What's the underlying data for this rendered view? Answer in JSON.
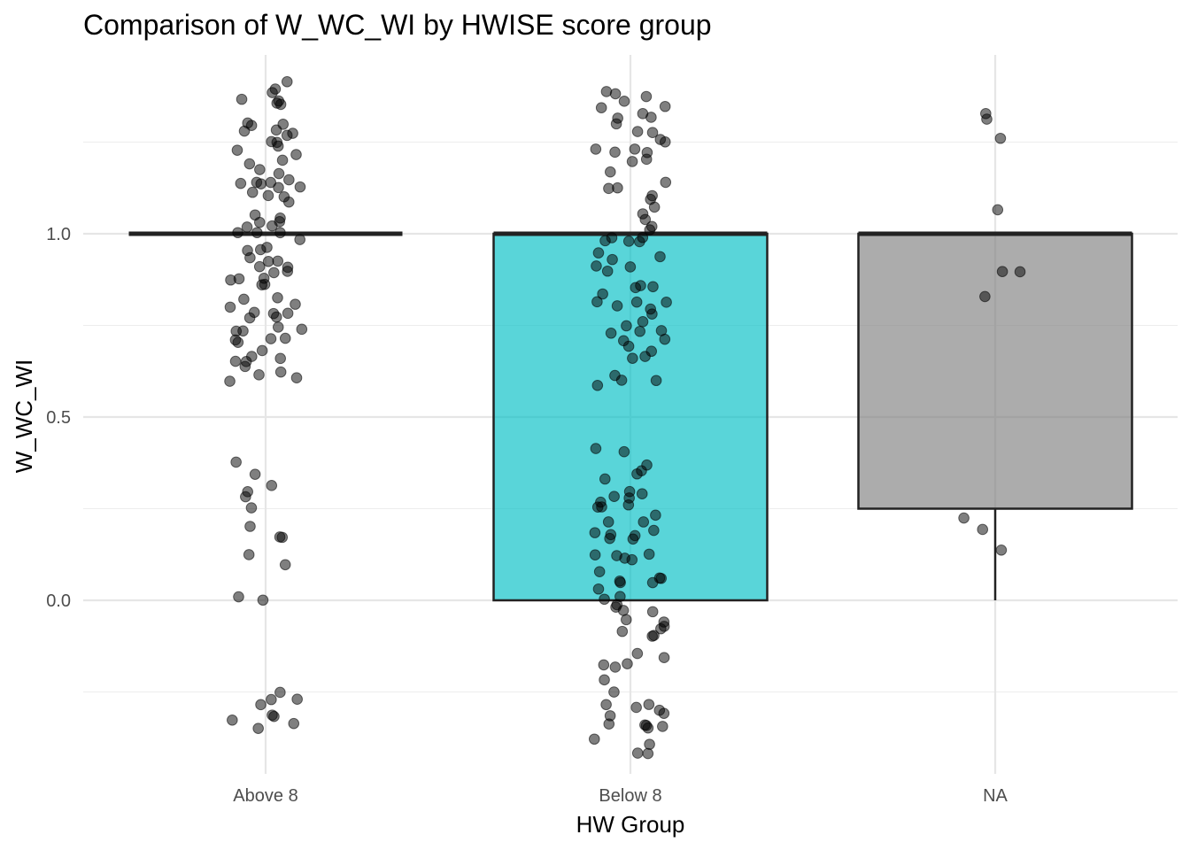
{
  "chart_data": {
    "type": "boxplot",
    "title": "Comparison of W_WC_WI by HWISE score group",
    "xlabel": "HW Group",
    "ylabel": "W_WC_WI",
    "ylim": [
      -0.47,
      1.5
    ],
    "y_ticks": [
      0.0,
      0.5,
      1.0
    ],
    "y_tick_labels": [
      "0.0",
      "0.5",
      "1.0"
    ],
    "categories": [
      "Above 8",
      "Below 8",
      "NA"
    ],
    "colors": {
      "Above 8": "#F8766D",
      "Below 8": "#00BFC4",
      "NA": "#7F7F7F",
      "box_outline": "#222222",
      "points": "#000000"
    },
    "boxes": [
      {
        "group": "Above 8",
        "whisker_low": 1.0,
        "q1": 1.0,
        "median": 1.0,
        "q3": 1.0,
        "whisker_high": 1.0
      },
      {
        "group": "Below 8",
        "whisker_low": 0.0,
        "q1": 0.0,
        "median": 1.0,
        "q3": 1.0,
        "whisker_high": 1.0
      },
      {
        "group": "NA",
        "whisker_low": 0.0,
        "q1": 0.25,
        "median": 1.0,
        "q3": 1.0,
        "whisker_high": 1.0
      }
    ],
    "points": [
      {
        "group": "Above 8",
        "values": [
          1.37,
          1.36,
          1.35,
          1.34,
          1.33,
          1.31,
          1.29,
          1.27,
          1.26,
          1.25,
          1.23,
          1.21,
          1.2,
          1.19,
          1.18,
          1.17,
          1.15,
          1.14,
          1.13,
          1.12,
          1.11,
          1.1,
          1.08,
          1.07,
          1.05,
          1.04,
          1.02,
          1.01,
          1.0,
          0.99,
          0.98,
          0.96,
          0.95,
          0.93,
          0.91,
          0.9,
          0.88,
          0.87,
          0.86,
          0.84,
          0.83,
          0.82,
          0.8,
          0.79,
          0.78,
          0.77,
          0.75,
          0.74,
          0.73,
          0.72,
          0.7,
          0.68,
          0.67,
          0.66,
          0.64,
          0.63,
          0.62,
          0.61,
          0.6,
          1.38,
          1.36,
          1.33,
          1.3,
          1.27,
          1.24,
          1.22,
          1.19,
          1.16,
          1.13,
          1.1,
          1.06,
          1.03,
          1.0,
          0.97,
          0.94,
          0.91,
          0.88,
          0.85,
          0.82,
          0.79,
          0.76,
          0.73,
          0.7,
          0.67,
          0.64,
          0.62,
          0.35,
          0.31,
          0.3,
          0.28,
          0.28,
          0.23,
          0.2,
          0.17,
          0.16,
          0.15,
          0.13,
          0.01,
          0.01,
          -0.26,
          -0.26,
          -0.28,
          -0.3,
          -0.3,
          -0.31,
          -0.32,
          -0.32,
          -0.38
        ]
      },
      {
        "group": "Below 8",
        "values": [
          1.38,
          1.37,
          1.36,
          1.35,
          1.34,
          1.32,
          1.3,
          1.28,
          1.27,
          1.26,
          1.24,
          1.22,
          1.2,
          1.19,
          1.17,
          1.15,
          1.14,
          1.12,
          1.1,
          1.08,
          1.06,
          1.05,
          1.03,
          1.01,
          1.0,
          0.98,
          0.96,
          0.95,
          0.93,
          0.91,
          0.9,
          0.88,
          0.86,
          0.85,
          0.83,
          0.81,
          0.8,
          0.78,
          0.76,
          0.75,
          0.73,
          0.71,
          0.7,
          0.68,
          0.66,
          0.65,
          0.63,
          0.61,
          0.6,
          1.35,
          1.31,
          1.27,
          1.23,
          1.18,
          1.13,
          1.08,
          1.03,
          0.99,
          0.94,
          0.9,
          0.86,
          0.82,
          0.78,
          0.74,
          0.7,
          0.66,
          0.62,
          0.4,
          0.39,
          0.38,
          0.37,
          0.36,
          0.34,
          0.32,
          0.3,
          0.29,
          0.27,
          0.26,
          0.25,
          0.24,
          0.22,
          0.21,
          0.2,
          0.18,
          0.17,
          0.16,
          0.14,
          0.13,
          0.12,
          0.11,
          0.09,
          0.08,
          0.07,
          0.05,
          0.04,
          0.02,
          0.01,
          0.0,
          0.3,
          0.25,
          0.2,
          0.15,
          0.1,
          0.05,
          0.0,
          -0.01,
          -0.03,
          -0.05,
          -0.07,
          -0.08,
          -0.1,
          -0.11,
          -0.13,
          -0.16,
          -0.18,
          -0.2,
          -0.22,
          -0.24,
          -0.25,
          -0.27,
          -0.28,
          -0.3,
          -0.31,
          -0.33,
          -0.34,
          -0.36,
          -0.37,
          -0.38,
          -0.39,
          -0.4,
          -0.02,
          -0.06,
          -0.12,
          -0.19,
          -0.26,
          -0.32,
          -0.37
        ]
      },
      {
        "group": "NA",
        "values": [
          1.34,
          1.33,
          1.24,
          1.1,
          0.93,
          0.93,
          0.84,
          0.25,
          0.16,
          0.11
        ]
      }
    ]
  }
}
